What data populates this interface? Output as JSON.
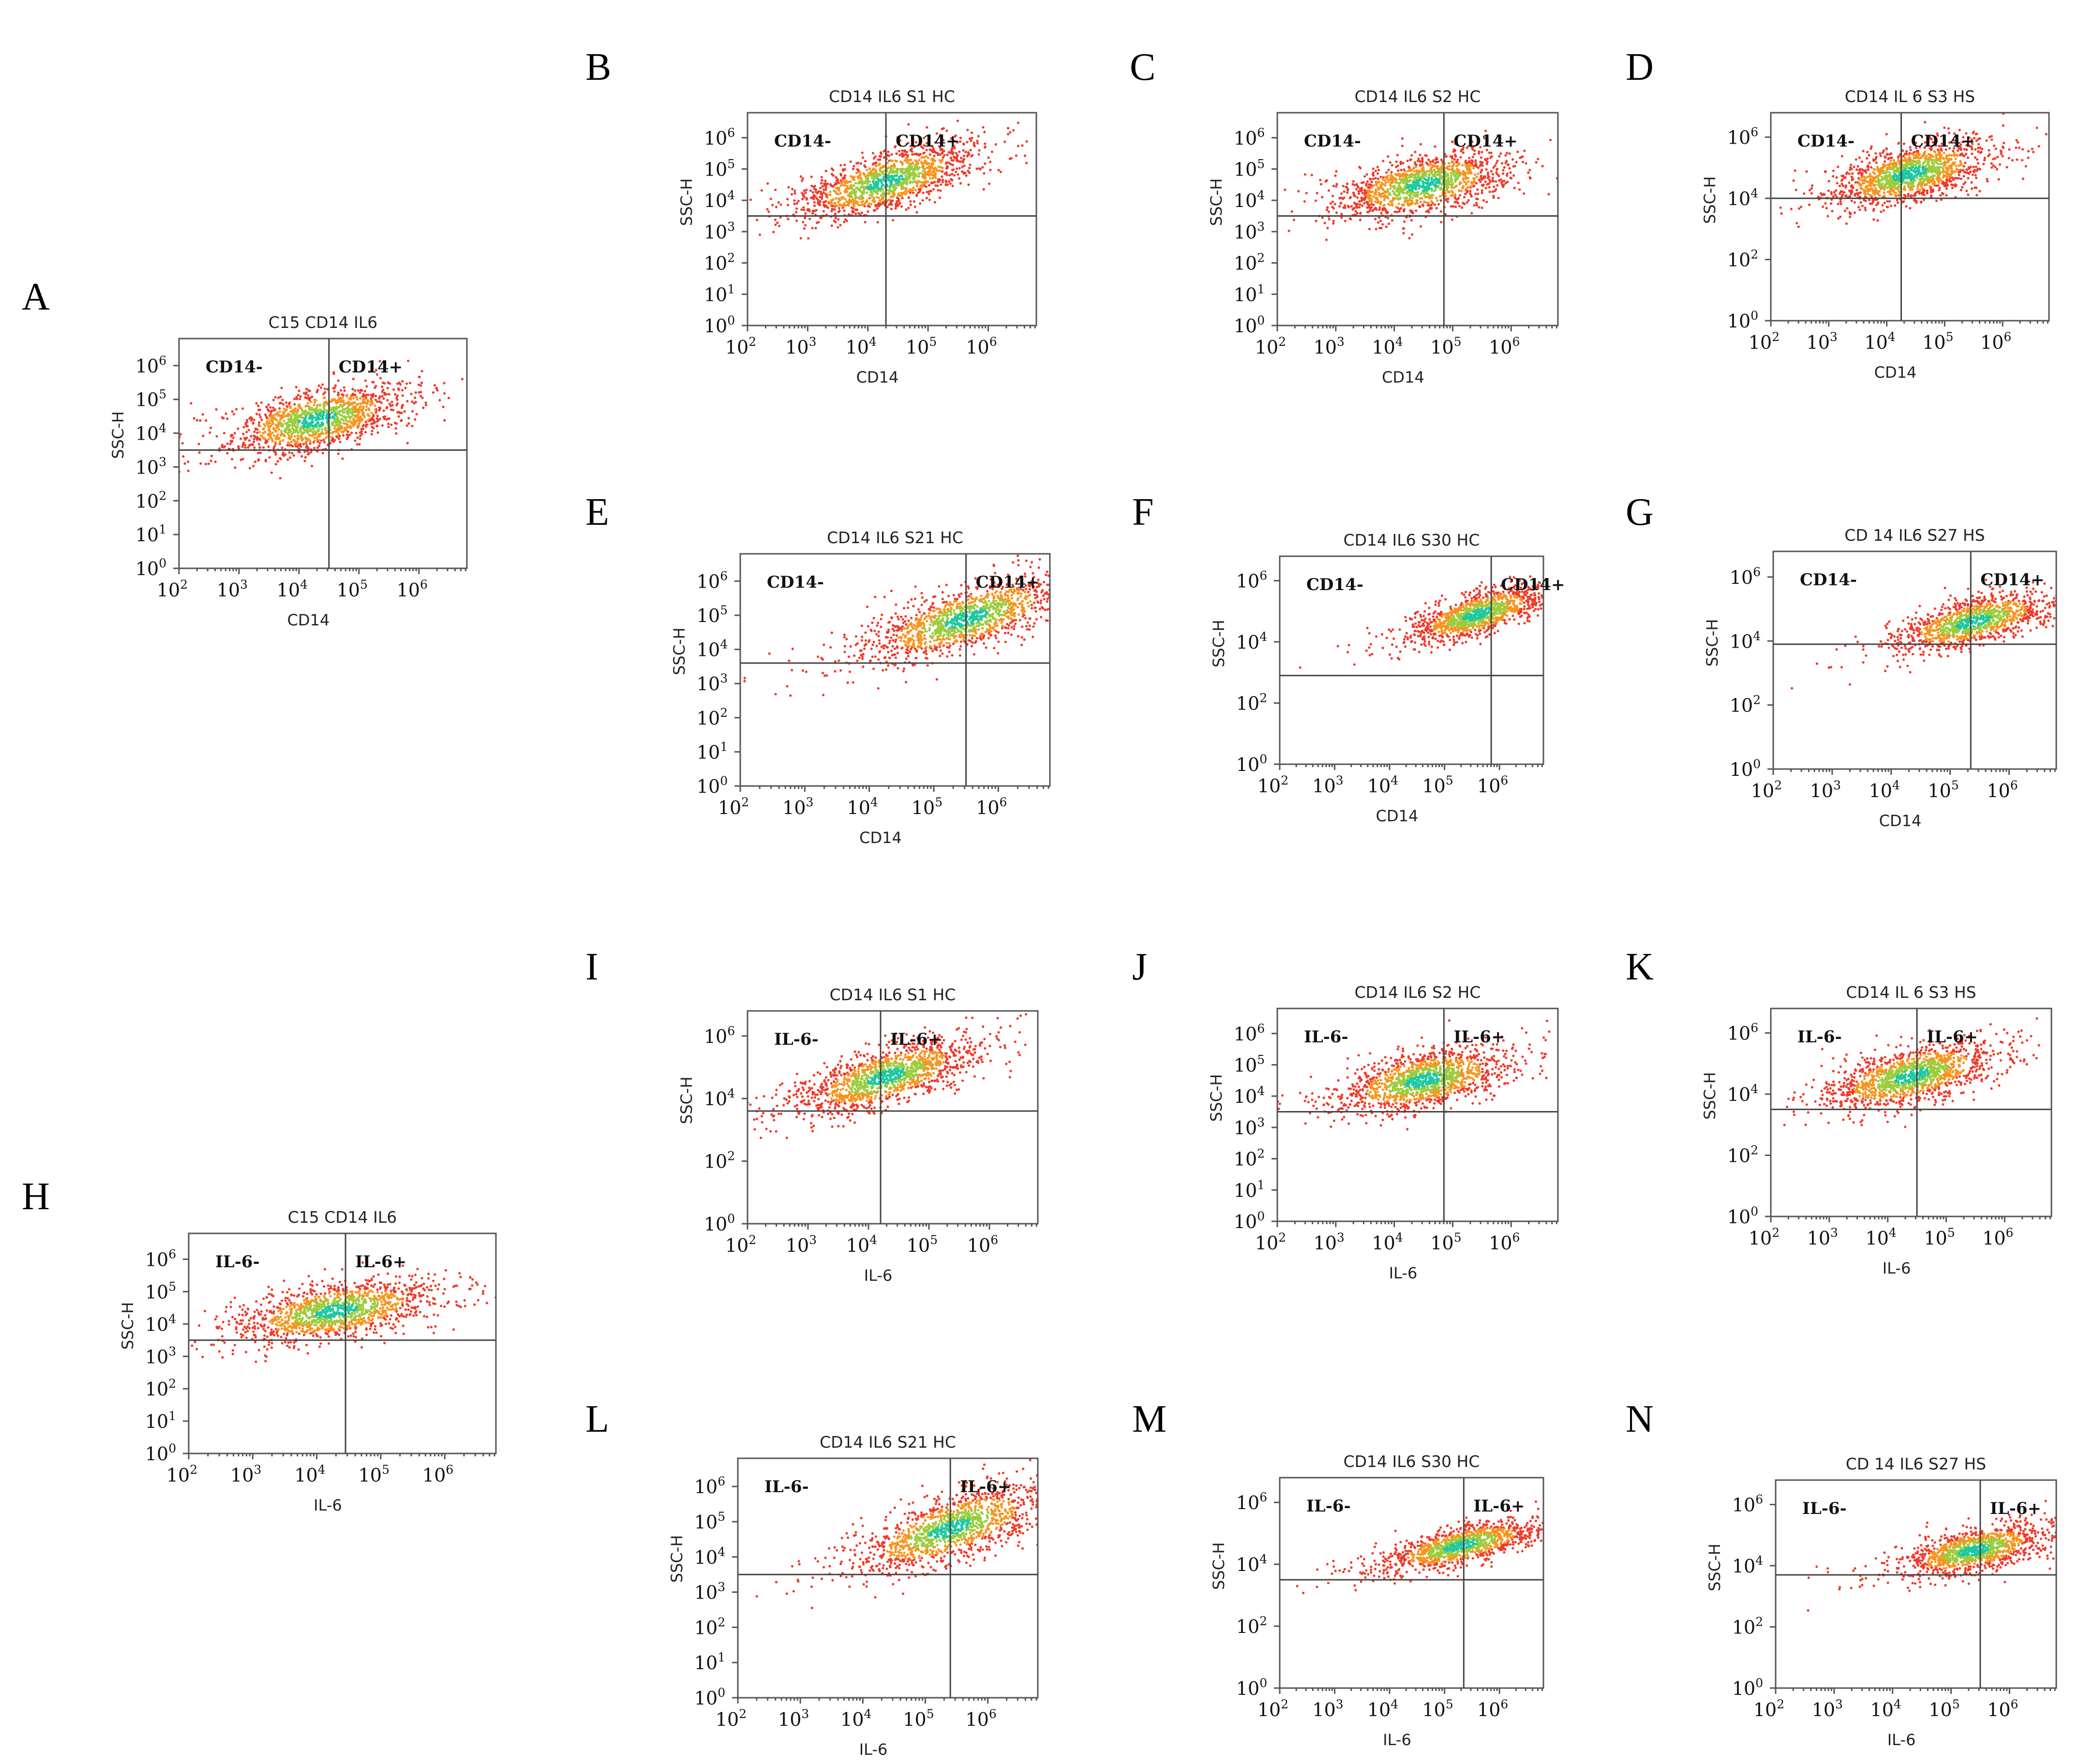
{
  "chart_data": [
    {
      "letter": "A",
      "type": "scatter",
      "title": "C15 CD14 IL6",
      "xlabel": "CD14",
      "ylabel": "SSC-H",
      "xticks": [
        2,
        3,
        4,
        5,
        6
      ],
      "yticks": [
        0,
        1,
        2,
        3,
        4,
        5,
        6
      ],
      "xlim": [
        2,
        6.8
      ],
      "ylim": [
        0,
        6.8
      ],
      "gate": {
        "x": 4.5,
        "y": 3.5
      },
      "quadrant_labels": [
        "CD14-",
        "CD14+"
      ],
      "cluster": {
        "center": [
          4.3,
          4.4
        ],
        "slope": 0.35,
        "spread_x": 0.7,
        "spread_y": 0.45,
        "n": 1400
      }
    },
    {
      "letter": "B",
      "type": "scatter",
      "title": "CD14 IL6 S1 HC",
      "xlabel": "CD14",
      "ylabel": "SSC-H",
      "xticks": [
        2,
        3,
        4,
        5,
        6
      ],
      "yticks": [
        0,
        1,
        2,
        3,
        4,
        5,
        6
      ],
      "xlim": [
        2,
        6.8
      ],
      "ylim": [
        0,
        6.8
      ],
      "gate": {
        "x": 4.3,
        "y": 3.5
      },
      "quadrant_labels": [
        "CD14-",
        "CD14+"
      ],
      "cluster": {
        "center": [
          4.3,
          4.6
        ],
        "slope": 0.55,
        "spread_x": 0.7,
        "spread_y": 0.45,
        "n": 1400
      }
    },
    {
      "letter": "C",
      "type": "scatter",
      "title": "CD14 IL6 S2 HC",
      "xlabel": "CD14",
      "ylabel": "SSC-H",
      "xticks": [
        2,
        3,
        4,
        5,
        6
      ],
      "yticks": [
        0,
        1,
        2,
        3,
        4,
        5,
        6
      ],
      "xlim": [
        2,
        6.8
      ],
      "ylim": [
        0,
        6.8
      ],
      "gate": {
        "x": 4.85,
        "y": 3.5
      },
      "quadrant_labels": [
        "CD14-",
        "CD14+"
      ],
      "cluster": {
        "center": [
          4.5,
          4.5
        ],
        "slope": 0.35,
        "spread_x": 0.7,
        "spread_y": 0.45,
        "n": 1400
      }
    },
    {
      "letter": "D",
      "type": "scatter",
      "title": "CD14 IL 6 S3 HS",
      "xlabel": "CD14",
      "ylabel": "SSC-H",
      "xticks": [
        2,
        3,
        4,
        5,
        6
      ],
      "yticks": [
        0,
        2,
        4,
        6
      ],
      "xlim": [
        2,
        6.8
      ],
      "ylim": [
        0,
        6.8
      ],
      "gate": {
        "x": 4.25,
        "y": 4.0
      },
      "quadrant_labels": [
        "CD14-",
        "CD14+"
      ],
      "cluster": {
        "center": [
          4.4,
          4.8
        ],
        "slope": 0.45,
        "spread_x": 0.65,
        "spread_y": 0.45,
        "n": 1400
      }
    },
    {
      "letter": "E",
      "type": "scatter",
      "title": "CD14 IL6 S21 HC",
      "xlabel": "CD14",
      "ylabel": "SSC-H",
      "xticks": [
        2,
        3,
        4,
        5,
        6
      ],
      "yticks": [
        0,
        1,
        2,
        3,
        4,
        5,
        6
      ],
      "xlim": [
        2,
        6.8
      ],
      "ylim": [
        0,
        6.8
      ],
      "gate": {
        "x": 5.5,
        "y": 3.6
      },
      "quadrant_labels": [
        "CD14-",
        "CD14+"
      ],
      "cluster": {
        "center": [
          5.5,
          4.9
        ],
        "slope": 0.55,
        "spread_x": 0.75,
        "spread_y": 0.45,
        "n": 1400
      }
    },
    {
      "letter": "F",
      "type": "scatter",
      "title": "CD14 IL6 S30 HC",
      "xlabel": "CD14",
      "ylabel": "SSC-H",
      "xticks": [
        2,
        3,
        4,
        5,
        6
      ],
      "yticks": [
        0,
        2,
        4,
        6
      ],
      "xlim": [
        2,
        6.8
      ],
      "ylim": [
        0,
        6.8
      ],
      "gate": {
        "x": 5.85,
        "y": 2.9
      },
      "quadrant_labels": [
        "CD14-",
        "CD14+"
      ],
      "cluster": {
        "center": [
          5.6,
          4.9
        ],
        "slope": 0.5,
        "spread_x": 0.6,
        "spread_y": 0.35,
        "n": 1200
      }
    },
    {
      "letter": "G",
      "type": "scatter",
      "title": "CD 14 IL6 S27 HS",
      "xlabel": "CD14",
      "ylabel": "SSC-H",
      "xticks": [
        2,
        3,
        4,
        5,
        6
      ],
      "yticks": [
        0,
        2,
        4,
        6
      ],
      "xlim": [
        2,
        6.8
      ],
      "ylim": [
        0,
        6.8
      ],
      "gate": {
        "x": 5.35,
        "y": 3.9
      },
      "quadrant_labels": [
        "CD14-",
        "CD14+"
      ],
      "cluster": {
        "center": [
          5.4,
          4.6
        ],
        "slope": 0.45,
        "spread_x": 0.65,
        "spread_y": 0.35,
        "n": 1200
      }
    },
    {
      "letter": "H",
      "type": "scatter",
      "title": "C15 CD14 IL6",
      "xlabel": "IL-6",
      "ylabel": "SSC-H",
      "xticks": [
        2,
        3,
        4,
        5,
        6
      ],
      "yticks": [
        0,
        1,
        2,
        3,
        4,
        5,
        6
      ],
      "xlim": [
        2,
        6.8
      ],
      "ylim": [
        0,
        6.8
      ],
      "gate": {
        "x": 4.45,
        "y": 3.5
      },
      "quadrant_labels": [
        "IL-6-",
        "IL-6+"
      ],
      "cluster": {
        "center": [
          4.3,
          4.4
        ],
        "slope": 0.3,
        "spread_x": 0.75,
        "spread_y": 0.42,
        "n": 1400
      }
    },
    {
      "letter": "I",
      "type": "scatter",
      "title": "CD14 IL6 S1 HC",
      "xlabel": "IL-6",
      "ylabel": "SSC-H",
      "xticks": [
        2,
        3,
        4,
        5,
        6
      ],
      "yticks": [
        0,
        2,
        4,
        6
      ],
      "xlim": [
        2,
        6.8
      ],
      "ylim": [
        0,
        6.8
      ],
      "gate": {
        "x": 4.2,
        "y": 3.6
      },
      "quadrant_labels": [
        "IL-6-",
        "IL-6+"
      ],
      "cluster": {
        "center": [
          4.3,
          4.7
        ],
        "slope": 0.55,
        "spread_x": 0.7,
        "spread_y": 0.45,
        "n": 1400
      }
    },
    {
      "letter": "J",
      "type": "scatter",
      "title": "CD14 IL6 S2 HC",
      "xlabel": "IL-6",
      "ylabel": "SSC-H",
      "xticks": [
        2,
        3,
        4,
        5,
        6
      ],
      "yticks": [
        0,
        1,
        2,
        3,
        4,
        5,
        6
      ],
      "xlim": [
        2,
        6.8
      ],
      "ylim": [
        0,
        6.8
      ],
      "gate": {
        "x": 4.85,
        "y": 3.5
      },
      "quadrant_labels": [
        "IL-6-",
        "IL-6+"
      ],
      "cluster": {
        "center": [
          4.5,
          4.5
        ],
        "slope": 0.35,
        "spread_x": 0.7,
        "spread_y": 0.45,
        "n": 1400
      }
    },
    {
      "letter": "K",
      "type": "scatter",
      "title": "CD14 IL 6 S3 HS",
      "xlabel": "IL-6",
      "ylabel": "SSC-H",
      "xticks": [
        2,
        3,
        4,
        5,
        6
      ],
      "yticks": [
        0,
        2,
        4,
        6
      ],
      "xlim": [
        2,
        6.8
      ],
      "ylim": [
        0,
        6.8
      ],
      "gate": {
        "x": 4.5,
        "y": 3.5
      },
      "quadrant_labels": [
        "IL-6-",
        "IL-6+"
      ],
      "cluster": {
        "center": [
          4.4,
          4.6
        ],
        "slope": 0.45,
        "spread_x": 0.7,
        "spread_y": 0.45,
        "n": 1400
      }
    },
    {
      "letter": "L",
      "type": "scatter",
      "title": "CD14 IL6 S21 HC",
      "xlabel": "IL-6",
      "ylabel": "SSC-H",
      "xticks": [
        2,
        3,
        4,
        5,
        6
      ],
      "yticks": [
        0,
        1,
        2,
        3,
        4,
        5,
        6
      ],
      "xlim": [
        2,
        6.8
      ],
      "ylim": [
        0,
        6.8
      ],
      "gate": {
        "x": 5.4,
        "y": 3.5
      },
      "quadrant_labels": [
        "IL-6-",
        "IL-6+"
      ],
      "cluster": {
        "center": [
          5.4,
          4.8
        ],
        "slope": 0.55,
        "spread_x": 0.75,
        "spread_y": 0.45,
        "n": 1400
      }
    },
    {
      "letter": "M",
      "type": "scatter",
      "title": "CD14 IL6 S30 HC",
      "xlabel": "IL-6",
      "ylabel": "SSC-H",
      "xticks": [
        2,
        3,
        4,
        5,
        6
      ],
      "yticks": [
        0,
        2,
        4,
        6
      ],
      "xlim": [
        2,
        6.8
      ],
      "ylim": [
        0,
        6.8
      ],
      "gate": {
        "x": 5.35,
        "y": 3.5
      },
      "quadrant_labels": [
        "IL-6-",
        "IL-6+"
      ],
      "cluster": {
        "center": [
          5.3,
          4.6
        ],
        "slope": 0.4,
        "spread_x": 0.7,
        "spread_y": 0.3,
        "n": 1200
      }
    },
    {
      "letter": "N",
      "type": "scatter",
      "title": "CD 14 IL6 S27 HS",
      "xlabel": "IL-6",
      "ylabel": "SSC-H",
      "xticks": [
        2,
        3,
        4,
        5,
        6
      ],
      "yticks": [
        0,
        2,
        4,
        6
      ],
      "xlim": [
        2,
        6.8
      ],
      "ylim": [
        0,
        6.8
      ],
      "gate": {
        "x": 5.5,
        "y": 3.7
      },
      "quadrant_labels": [
        "IL-6-",
        "IL-6+"
      ],
      "cluster": {
        "center": [
          5.4,
          4.5
        ],
        "slope": 0.4,
        "spread_x": 0.6,
        "spread_y": 0.35,
        "n": 1200
      }
    }
  ],
  "colors": {
    "sparse": "#f03a2a",
    "mid": "#f7941d",
    "dense": "#9ccc3c",
    "core": "#1ec8a0",
    "axis": "#555555"
  }
}
